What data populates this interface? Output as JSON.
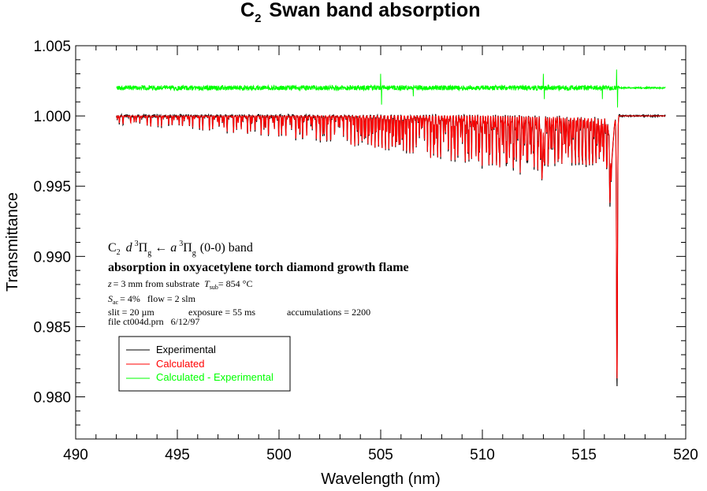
{
  "chart_data": {
    "type": "line",
    "title": "C",
    "title_subscript": "2",
    "title_rest": "Swan band absorption",
    "xlabel": "Wavelength (nm)",
    "ylabel": "Transmittance",
    "xlim": [
      490,
      520
    ],
    "ylim": [
      0.977,
      1.005
    ],
    "xticks": [
      490,
      495,
      500,
      505,
      510,
      515,
      520
    ],
    "xtick_labels": [
      "490",
      "495",
      "500",
      "505",
      "510",
      "515",
      "520"
    ],
    "x_minor_step": 1,
    "yticks": [
      0.98,
      0.985,
      0.99,
      0.995,
      1.0,
      1.005
    ],
    "ytick_labels": [
      "0.980",
      "0.985",
      "0.990",
      "0.995",
      "1.000",
      "1.005"
    ],
    "y_minor_step": 0.001,
    "grid": false,
    "data_range_nm": [
      492,
      519
    ],
    "series": [
      {
        "name": "Experimental",
        "color": "#000000",
        "baseline": 1.0,
        "description": "Dense rotational absorption lines; depth increasing toward band head",
        "notable_points": [
          {
            "x": 492.0,
            "y": 1.0
          },
          {
            "x": 496.0,
            "y": 0.9992
          },
          {
            "x": 500.0,
            "y": 0.9985
          },
          {
            "x": 504.0,
            "y": 0.9978
          },
          {
            "x": 508.0,
            "y": 0.9965
          },
          {
            "x": 511.0,
            "y": 0.9955
          },
          {
            "x": 512.9,
            "y": 0.9945
          },
          {
            "x": 514.0,
            "y": 0.9962
          },
          {
            "x": 516.0,
            "y": 0.996
          },
          {
            "x": 516.3,
            "y": 0.993
          },
          {
            "x": 516.55,
            "y": 0.9835
          },
          {
            "x": 516.62,
            "y": 0.98
          },
          {
            "x": 516.75,
            "y": 1.0
          },
          {
            "x": 519.0,
            "y": 1.0
          }
        ]
      },
      {
        "name": "Calculated",
        "color": "#ff0000",
        "baseline": 1.0,
        "description": "Simulated spectrum closely matching experimental",
        "notable_points": [
          {
            "x": 492.0,
            "y": 1.0
          },
          {
            "x": 496.0,
            "y": 0.9993
          },
          {
            "x": 500.0,
            "y": 0.9986
          },
          {
            "x": 504.0,
            "y": 0.9978
          },
          {
            "x": 508.0,
            "y": 0.9966
          },
          {
            "x": 511.0,
            "y": 0.9955
          },
          {
            "x": 512.9,
            "y": 0.995
          },
          {
            "x": 516.62,
            "y": 0.98
          },
          {
            "x": 516.75,
            "y": 1.0
          },
          {
            "x": 519.0,
            "y": 1.0
          }
        ]
      },
      {
        "name": "Calculated - Experimental",
        "color": "#00ff00",
        "baseline": 1.002,
        "description": "Residual offset by +0.002; spikes near 505.0, 513.0, 515.9, 516.6 nm",
        "notable_points": [
          {
            "x": 492.0,
            "y": 1.002
          },
          {
            "x": 505.0,
            "y": 1.003
          },
          {
            "x": 505.05,
            "y": 1.0008
          },
          {
            "x": 506.6,
            "y": 1.0014
          },
          {
            "x": 513.0,
            "y": 1.003
          },
          {
            "x": 513.05,
            "y": 1.0012
          },
          {
            "x": 515.9,
            "y": 1.0012
          },
          {
            "x": 516.6,
            "y": 1.0033
          },
          {
            "x": 516.65,
            "y": 1.0006
          },
          {
            "x": 519.0,
            "y": 1.002
          }
        ]
      }
    ],
    "legend": {
      "placement": "lower-left",
      "entries": [
        {
          "label": "Experimental",
          "color": "#000000"
        },
        {
          "label": "Calculated",
          "color": "#ff0000"
        },
        {
          "label": "Calculated - Experimental",
          "color": "#00ff00"
        }
      ]
    },
    "annotations": {
      "line1_a": "C",
      "line1_a_sub": "2",
      "line1_b": "d",
      "line1_sup1": "3",
      "line1_pi1": "Π",
      "line1_sub1": "g",
      "line1_arrow": "←",
      "line1_c": "a",
      "line1_sup2": "3",
      "line1_pi2": "Π",
      "line1_sub2": "g",
      "line1_end": "(0-0) band",
      "line2": "absorption in oxyacetylene torch diamond growth flame",
      "line3_a": "z",
      "line3_b": "= 3 mm from substrate",
      "line3_c": "T",
      "line3_c_sub": "sub",
      "line3_d": "= 854 °C",
      "line4_a": "S",
      "line4_a_sub": "ac",
      "line4_b": "= 4%   flow = 2 slm",
      "line5_a": "slit = 20 µm",
      "line5_b": "exposure = 55 ms",
      "line5_c": "accumulations = 2200",
      "line6": "file ct004d.prn   6/12/97"
    }
  }
}
